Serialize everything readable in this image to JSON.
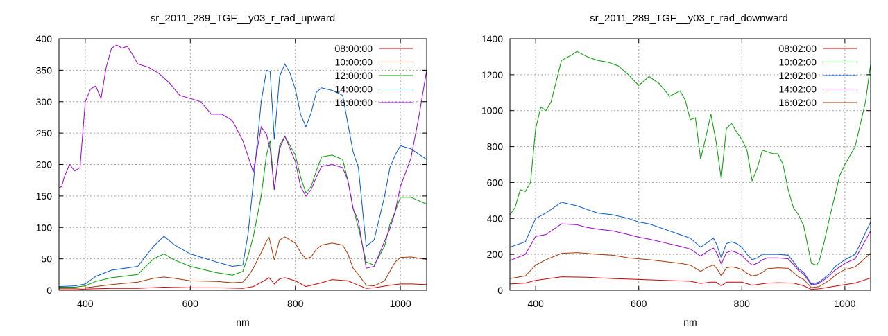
{
  "chart_data": [
    {
      "type": "line",
      "title": "sr_2011_289_TGF__y03_r_rad_upward",
      "xlabel": "nm",
      "ylabel": "",
      "xlim": [
        350,
        1050
      ],
      "ylim": [
        0,
        400
      ],
      "xticks": [
        400,
        600,
        800,
        1000
      ],
      "yticks": [
        0,
        50,
        100,
        150,
        200,
        250,
        300,
        350,
        400
      ],
      "grid": true,
      "legend_position": "top-right",
      "series": [
        {
          "name": "08:00:00",
          "color": "#cc0000",
          "x": [
            350,
            380,
            400,
            450,
            500,
            550,
            600,
            650,
            700,
            720,
            740,
            750,
            760,
            770,
            780,
            800,
            820,
            850,
            870,
            900,
            920,
            935,
            950,
            980,
            1000,
            1020,
            1050
          ],
          "y": [
            1,
            1,
            2,
            3,
            3,
            5,
            4,
            4,
            3,
            6,
            15,
            20,
            10,
            18,
            20,
            15,
            6,
            12,
            17,
            15,
            8,
            3,
            4,
            8,
            10,
            10,
            9
          ]
        },
        {
          "name": "10:00:00",
          "color": "#a83200",
          "x": [
            350,
            380,
            400,
            420,
            450,
            500,
            530,
            550,
            570,
            600,
            650,
            680,
            700,
            710,
            720,
            735,
            745,
            750,
            760,
            770,
            780,
            790,
            800,
            810,
            820,
            830,
            840,
            850,
            870,
            890,
            900,
            910,
            920,
            935,
            950,
            970,
            980,
            990,
            1000,
            1020,
            1050
          ],
          "y": [
            3,
            3,
            4,
            6,
            9,
            13,
            19,
            21,
            19,
            15,
            14,
            12,
            13,
            22,
            35,
            60,
            78,
            84,
            48,
            80,
            85,
            80,
            75,
            60,
            50,
            53,
            65,
            72,
            75,
            72,
            58,
            35,
            25,
            8,
            7,
            15,
            30,
            45,
            52,
            53,
            49
          ]
        },
        {
          "name": "12:00:00",
          "color": "#009900",
          "x": [
            350,
            380,
            400,
            420,
            450,
            500,
            530,
            550,
            570,
            600,
            650,
            680,
            700,
            710,
            720,
            735,
            745,
            752,
            760,
            770,
            780,
            790,
            800,
            810,
            820,
            830,
            840,
            850,
            870,
            890,
            900,
            910,
            920,
            935,
            950,
            970,
            980,
            990,
            1000,
            1020,
            1050
          ],
          "y": [
            5,
            5,
            7,
            14,
            20,
            25,
            50,
            58,
            48,
            38,
            28,
            24,
            30,
            55,
            85,
            150,
            215,
            238,
            160,
            230,
            245,
            230,
            215,
            180,
            155,
            165,
            190,
            212,
            215,
            208,
            175,
            130,
            100,
            45,
            40,
            70,
            105,
            125,
            148,
            148,
            137
          ]
        },
        {
          "name": "14:00:00",
          "color": "#0055cc",
          "x": [
            350,
            380,
            400,
            420,
            450,
            500,
            530,
            550,
            570,
            600,
            650,
            680,
            700,
            710,
            720,
            735,
            745,
            752,
            760,
            770,
            780,
            790,
            800,
            810,
            820,
            830,
            840,
            850,
            870,
            890,
            900,
            910,
            920,
            935,
            950,
            970,
            980,
            990,
            1000,
            1020,
            1050
          ],
          "y": [
            6,
            7,
            10,
            22,
            32,
            38,
            70,
            86,
            72,
            58,
            45,
            38,
            40,
            90,
            170,
            300,
            350,
            348,
            240,
            340,
            360,
            345,
            320,
            280,
            260,
            282,
            315,
            322,
            318,
            310,
            265,
            220,
            195,
            70,
            80,
            150,
            195,
            215,
            230,
            225,
            208
          ]
        },
        {
          "name": "16:00:00",
          "color": "#9900cc",
          "x": [
            350,
            355,
            360,
            370,
            380,
            390,
            400,
            410,
            420,
            430,
            440,
            450,
            460,
            470,
            480,
            490,
            500,
            520,
            540,
            560,
            580,
            600,
            620,
            640,
            660,
            680,
            700,
            720,
            735,
            745,
            752,
            760,
            770,
            780,
            790,
            800,
            810,
            820,
            830,
            840,
            850,
            870,
            890,
            900,
            910,
            920,
            935,
            950,
            970,
            980,
            990,
            1000,
            1020,
            1035,
            1050
          ],
          "y": [
            163,
            165,
            180,
            200,
            190,
            195,
            300,
            320,
            325,
            305,
            355,
            385,
            390,
            385,
            388,
            375,
            360,
            355,
            345,
            330,
            310,
            305,
            300,
            280,
            280,
            270,
            238,
            188,
            260,
            248,
            225,
            160,
            225,
            245,
            225,
            205,
            165,
            150,
            160,
            180,
            197,
            200,
            195,
            175,
            130,
            110,
            35,
            38,
            78,
            98,
            125,
            165,
            210,
            275,
            350
          ]
        }
      ]
    },
    {
      "type": "line",
      "title": "sr_2011_289_TGF__y03_r_rad_downward",
      "xlabel": "nm",
      "ylabel": "",
      "xlim": [
        350,
        1050
      ],
      "ylim": [
        0,
        1400
      ],
      "xticks": [
        400,
        600,
        800,
        1000
      ],
      "yticks": [
        0,
        200,
        400,
        600,
        800,
        1000,
        1200,
        1400
      ],
      "grid": true,
      "legend_position": "top-right",
      "series": [
        {
          "name": "08:02:00",
          "color": "#cc0000",
          "x": [
            350,
            380,
            400,
            450,
            500,
            550,
            600,
            650,
            700,
            720,
            740,
            750,
            760,
            770,
            780,
            800,
            820,
            850,
            870,
            900,
            920,
            935,
            950,
            980,
            1000,
            1020,
            1050
          ],
          "y": [
            35,
            40,
            55,
            75,
            72,
            65,
            60,
            55,
            50,
            38,
            45,
            45,
            25,
            45,
            45,
            45,
            28,
            40,
            42,
            40,
            25,
            5,
            8,
            22,
            32,
            40,
            68
          ]
        },
        {
          "name": "10:02:00",
          "color": "#009900",
          "x": [
            350,
            360,
            370,
            380,
            390,
            400,
            410,
            420,
            430,
            450,
            470,
            480,
            500,
            520,
            540,
            560,
            580,
            600,
            620,
            640,
            660,
            680,
            690,
            700,
            710,
            720,
            730,
            740,
            750,
            760,
            770,
            780,
            790,
            800,
            810,
            820,
            830,
            840,
            850,
            860,
            870,
            880,
            890,
            900,
            910,
            920,
            935,
            945,
            950,
            960,
            970,
            980,
            990,
            1000,
            1020,
            1040,
            1050
          ],
          "y": [
            420,
            460,
            560,
            550,
            600,
            900,
            1020,
            1000,
            1050,
            1280,
            1310,
            1330,
            1300,
            1280,
            1270,
            1250,
            1200,
            1140,
            1190,
            1150,
            1080,
            1110,
            1060,
            950,
            960,
            730,
            850,
            980,
            830,
            620,
            900,
            930,
            880,
            840,
            780,
            610,
            680,
            780,
            770,
            760,
            760,
            700,
            560,
            460,
            420,
            360,
            150,
            140,
            160,
            270,
            400,
            520,
            640,
            700,
            800,
            1050,
            1260
          ]
        },
        {
          "name": "12:02:00",
          "color": "#0055cc",
          "x": [
            350,
            380,
            400,
            420,
            450,
            480,
            500,
            520,
            550,
            580,
            600,
            620,
            650,
            680,
            700,
            720,
            735,
            745,
            752,
            760,
            770,
            780,
            790,
            800,
            810,
            820,
            830,
            840,
            850,
            870,
            890,
            900,
            910,
            920,
            935,
            950,
            970,
            980,
            990,
            1000,
            1020,
            1050
          ],
          "y": [
            240,
            270,
            400,
            430,
            490,
            470,
            450,
            430,
            420,
            400,
            380,
            370,
            340,
            310,
            290,
            240,
            270,
            290,
            250,
            180,
            260,
            270,
            260,
            240,
            200,
            170,
            180,
            200,
            200,
            200,
            195,
            160,
            120,
            100,
            35,
            45,
            90,
            130,
            150,
            170,
            200,
            380
          ]
        },
        {
          "name": "14:02:00",
          "color": "#9900cc",
          "x": [
            350,
            380,
            400,
            420,
            450,
            480,
            500,
            520,
            550,
            580,
            600,
            620,
            650,
            680,
            700,
            720,
            735,
            745,
            752,
            760,
            770,
            780,
            790,
            800,
            810,
            820,
            830,
            840,
            850,
            870,
            890,
            900,
            910,
            920,
            935,
            950,
            970,
            980,
            990,
            1000,
            1020,
            1050
          ],
          "y": [
            165,
            200,
            300,
            310,
            370,
            365,
            350,
            340,
            330,
            310,
            295,
            285,
            265,
            245,
            230,
            190,
            220,
            235,
            205,
            145,
            210,
            220,
            210,
            195,
            165,
            140,
            150,
            170,
            180,
            180,
            175,
            145,
            110,
            90,
            30,
            38,
            80,
            110,
            130,
            150,
            175,
            330
          ]
        },
        {
          "name": "16:02:00",
          "color": "#a83200",
          "x": [
            350,
            380,
            400,
            420,
            450,
            480,
            500,
            520,
            550,
            580,
            600,
            620,
            650,
            680,
            700,
            720,
            735,
            745,
            752,
            760,
            770,
            780,
            790,
            800,
            810,
            820,
            830,
            840,
            850,
            870,
            890,
            900,
            910,
            920,
            935,
            950,
            970,
            980,
            990,
            1000,
            1020,
            1050
          ],
          "y": [
            65,
            80,
            140,
            170,
            205,
            210,
            205,
            200,
            195,
            180,
            175,
            170,
            160,
            150,
            140,
            105,
            130,
            140,
            120,
            80,
            125,
            130,
            125,
            115,
            95,
            80,
            85,
            100,
            120,
            125,
            122,
            100,
            75,
            60,
            15,
            20,
            55,
            80,
            100,
            115,
            130,
            205
          ]
        }
      ]
    }
  ]
}
